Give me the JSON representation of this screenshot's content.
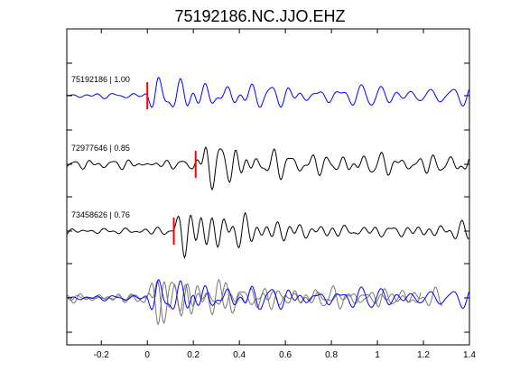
{
  "chart_data": {
    "type": "line",
    "title": "75192186.NC.JJO.EHZ",
    "xlabel": "",
    "ylabel": "",
    "xlim": [
      -0.35,
      1.4
    ],
    "x_ticks": [
      -0.2,
      0,
      0.2,
      0.4,
      0.6,
      0.8,
      1,
      1.2,
      1.4
    ],
    "x_tick_labels": [
      "-0.2",
      "0",
      "0.2",
      "0.4",
      "0.6",
      "0.8",
      "1",
      "1.2",
      "1.4"
    ],
    "grid": false,
    "colors": {
      "primary": "#0000ff",
      "secondary": "#000000",
      "overlay_gray": "#777777",
      "pick": "#ff0000"
    },
    "traces": [
      {
        "label": "75192186 | 1.00",
        "color": "#0000ff",
        "pick_time": 0.0,
        "seed": 11
      },
      {
        "label": "72977646 | 0.85",
        "color": "#000000",
        "pick_time": 0.21,
        "seed": 23
      },
      {
        "label": "73458626 | 0.76",
        "color": "#000000",
        "pick_time": 0.115,
        "seed": 37
      }
    ],
    "stack_overlay": {
      "description": "",
      "colors": [
        "#0000ff",
        "#777777",
        "#777777"
      ]
    }
  }
}
